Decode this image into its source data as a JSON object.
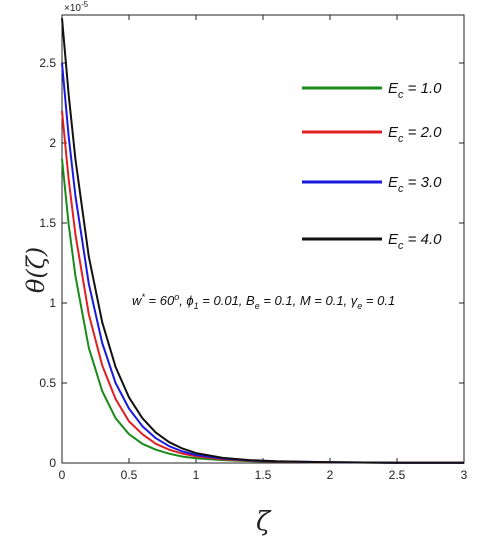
{
  "chart_data": {
    "type": "line",
    "ylabel_parts": {
      "base": "θ(",
      "var": "ζ",
      "close": ")"
    },
    "xlabel": "ζ",
    "y_multiplier": {
      "base": "×10",
      "exp": "-5"
    },
    "xlim": [
      0,
      3
    ],
    "ylim": [
      0,
      2.8
    ],
    "x_ticks": [
      0,
      0.5,
      1,
      1.5,
      2,
      2.5,
      3
    ],
    "x_tick_labels": [
      "0",
      "0.5",
      "1",
      "1.5",
      "2",
      "2.5",
      "3"
    ],
    "y_ticks": [
      0,
      0.5,
      1,
      1.5,
      2,
      2.5
    ],
    "y_tick_labels": [
      "0",
      "0.5",
      "1",
      "1.5",
      "2",
      "2.5"
    ],
    "grid": false,
    "legend_position": "top-right",
    "series": [
      {
        "name": "Ec = 1.0",
        "label": {
          "main": "E",
          "sub": "c",
          "rest": " = 1.0"
        },
        "color": "#1a8a1a",
        "x": [
          0,
          0.05,
          0.1,
          0.2,
          0.3,
          0.4,
          0.5,
          0.6,
          0.7,
          0.8,
          0.9,
          1.0,
          1.2,
          1.4,
          1.6,
          2.0,
          2.5,
          3.0
        ],
        "y": [
          1.9,
          1.49,
          1.17,
          0.72,
          0.45,
          0.28,
          0.18,
          0.12,
          0.083,
          0.058,
          0.04,
          0.03,
          0.018,
          0.012,
          0.008,
          0.004,
          0.002,
          0.001
        ]
      },
      {
        "name": "Ec = 2.0",
        "label": {
          "main": "E",
          "sub": "c",
          "rest": " = 2.0"
        },
        "color": "#e02020",
        "x": [
          0,
          0.05,
          0.1,
          0.2,
          0.3,
          0.4,
          0.5,
          0.6,
          0.7,
          0.8,
          0.9,
          1.0,
          1.2,
          1.4,
          1.6,
          2.0,
          2.5,
          3.0
        ],
        "y": [
          2.2,
          1.77,
          1.43,
          0.93,
          0.61,
          0.4,
          0.26,
          0.18,
          0.12,
          0.083,
          0.058,
          0.042,
          0.024,
          0.014,
          0.009,
          0.004,
          0.002,
          0.001
        ]
      },
      {
        "name": "Ec = 3.0",
        "label": {
          "main": "E",
          "sub": "c",
          "rest": " = 3.0"
        },
        "color": "#1a1adf",
        "x": [
          0,
          0.05,
          0.1,
          0.2,
          0.3,
          0.4,
          0.5,
          0.6,
          0.7,
          0.8,
          0.9,
          1.0,
          1.2,
          1.4,
          1.6,
          2.0,
          2.5,
          3.0
        ],
        "y": [
          2.5,
          2.04,
          1.67,
          1.12,
          0.75,
          0.5,
          0.34,
          0.23,
          0.155,
          0.105,
          0.072,
          0.05,
          0.028,
          0.016,
          0.01,
          0.005,
          0.002,
          0.001
        ]
      },
      {
        "name": "Ec = 4.0",
        "label": {
          "main": "E",
          "sub": "c",
          "rest": " = 4.0"
        },
        "color": "#111111",
        "x": [
          0,
          0.05,
          0.1,
          0.2,
          0.3,
          0.4,
          0.5,
          0.6,
          0.7,
          0.8,
          0.9,
          1.0,
          1.2,
          1.4,
          1.6,
          2.0,
          2.5,
          3.0
        ],
        "y": [
          2.78,
          2.3,
          1.9,
          1.29,
          0.88,
          0.6,
          0.41,
          0.28,
          0.19,
          0.13,
          0.09,
          0.062,
          0.032,
          0.018,
          0.011,
          0.005,
          0.002,
          0.001
        ]
      }
    ],
    "annotation": {
      "w_main": "w",
      "w_sup": "*",
      "w_val": " = 60",
      "w_deg": "o",
      "phi_main": ", ϕ",
      "phi_sub": "1",
      "phi_val": " = 0.01, B",
      "be_sub": "e",
      "rest1": " = 0.1, M = 0.1, γ",
      "gamma_sub": "e",
      "rest2": " = 0.1"
    }
  }
}
